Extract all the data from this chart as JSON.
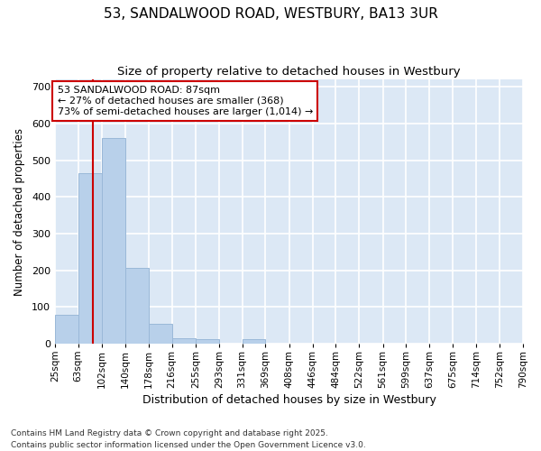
{
  "title_line1": "53, SANDALWOOD ROAD, WESTBURY, BA13 3UR",
  "title_line2": "Size of property relative to detached houses in Westbury",
  "xlabel": "Distribution of detached houses by size in Westbury",
  "ylabel": "Number of detached properties",
  "fig_bg_color": "#ffffff",
  "axes_bg_color": "#dce8f5",
  "bar_color": "#b8d0ea",
  "bar_edge_color": "#9ab8d8",
  "grid_color": "#ffffff",
  "bins": [
    25,
    63,
    102,
    140,
    178,
    216,
    255,
    293,
    331,
    369,
    408,
    446,
    484,
    522,
    561,
    599,
    637,
    675,
    714,
    752,
    790
  ],
  "bin_labels": [
    "25sqm",
    "63sqm",
    "102sqm",
    "140sqm",
    "178sqm",
    "216sqm",
    "255sqm",
    "293sqm",
    "331sqm",
    "369sqm",
    "408sqm",
    "446sqm",
    "484sqm",
    "522sqm",
    "561sqm",
    "599sqm",
    "637sqm",
    "675sqm",
    "714sqm",
    "752sqm",
    "790sqm"
  ],
  "bar_heights": [
    78,
    465,
    560,
    207,
    55,
    15,
    12,
    0,
    12,
    0,
    0,
    0,
    0,
    0,
    0,
    0,
    0,
    0,
    0,
    0
  ],
  "red_line_x": 87,
  "annotation_title": "53 SANDALWOOD ROAD: 87sqm",
  "annotation_line2": "← 27% of detached houses are smaller (368)",
  "annotation_line3": "73% of semi-detached houses are larger (1,014) →",
  "ylim": [
    0,
    720
  ],
  "yticks": [
    0,
    100,
    200,
    300,
    400,
    500,
    600,
    700
  ],
  "annotation_box_color": "#ffffff",
  "annotation_box_edge_color": "#cc0000",
  "footer_line1": "Contains HM Land Registry data © Crown copyright and database right 2025.",
  "footer_line2": "Contains public sector information licensed under the Open Government Licence v3.0."
}
